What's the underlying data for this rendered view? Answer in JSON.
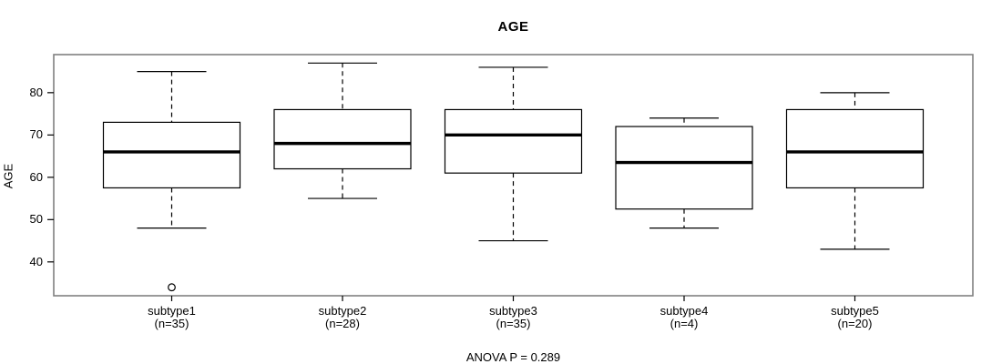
{
  "title": "AGE",
  "chart_data": {
    "type": "boxplot",
    "title": "AGE",
    "xlabel": "",
    "ylabel": "AGE",
    "footnote": "ANOVA P = 0.289",
    "ylim": [
      32,
      89
    ],
    "yticks": [
      "40",
      "50",
      "60",
      "70",
      "80"
    ],
    "ytick_values": [
      40,
      50,
      60,
      70,
      80
    ],
    "grid": false,
    "legend": "none",
    "categories": [
      "subtype1",
      "subtype2",
      "subtype3",
      "subtype4",
      "subtype5"
    ],
    "category_sublabels": [
      "(n=35)",
      "(n=28)",
      "(n=35)",
      "(n=4)",
      "(n=20)"
    ],
    "series": [
      {
        "name": "subtype1",
        "n": 35,
        "whisker_low": 48,
        "q1": 57.5,
        "median": 66,
        "q3": 73,
        "whisker_high": 85,
        "outliers": [
          34
        ]
      },
      {
        "name": "subtype2",
        "n": 28,
        "whisker_low": 55,
        "q1": 62,
        "median": 68,
        "q3": 76,
        "whisker_high": 87,
        "outliers": []
      },
      {
        "name": "subtype3",
        "n": 35,
        "whisker_low": 45,
        "q1": 61,
        "median": 70,
        "q3": 76,
        "whisker_high": 86,
        "outliers": []
      },
      {
        "name": "subtype4",
        "n": 4,
        "whisker_low": 48,
        "q1": 52.5,
        "median": 63.5,
        "q3": 72,
        "whisker_high": 74,
        "outliers": []
      },
      {
        "name": "subtype5",
        "n": 20,
        "whisker_low": 43,
        "q1": 57.5,
        "median": 66,
        "q3": 76,
        "whisker_high": 80,
        "outliers": []
      }
    ],
    "colors": {
      "frame": "#808080",
      "box_stroke": "#000000",
      "median": "#000000",
      "whisker": "#000000",
      "text": "#000000",
      "background": "#ffffff"
    }
  }
}
